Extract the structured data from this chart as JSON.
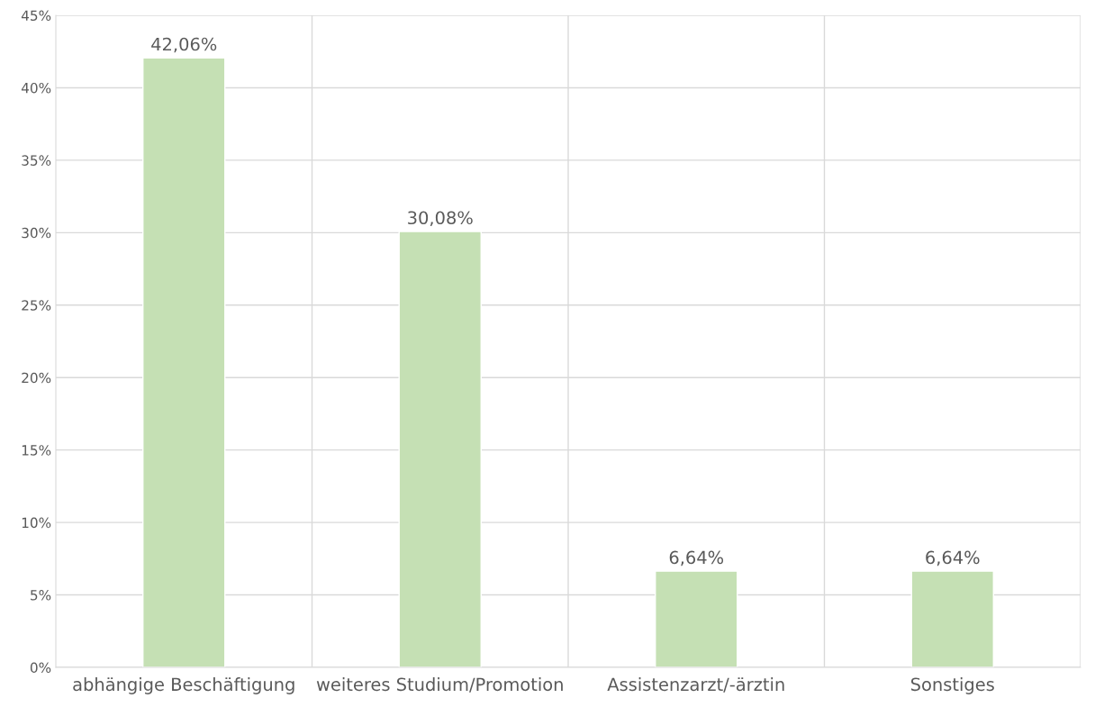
{
  "chart_data": {
    "type": "bar",
    "categories": [
      "abhängige Beschäftigung",
      "weiteres Studium/Promotion",
      "Assistenzarzt/-ärztin",
      "Sonstiges"
    ],
    "values": [
      42.06,
      30.08,
      6.64,
      6.64
    ],
    "value_labels": [
      "42,06%",
      "30,08%",
      "6,64%",
      "6,64%"
    ],
    "color": "#c5e0b4",
    "ylim": [
      0,
      45
    ],
    "yticks": [
      {
        "value": 0,
        "label": "0%"
      },
      {
        "value": 5,
        "label": "5%"
      },
      {
        "value": 10,
        "label": "10%"
      },
      {
        "value": 15,
        "label": "15%"
      },
      {
        "value": 20,
        "label": "20%"
      },
      {
        "value": 25,
        "label": "25%"
      },
      {
        "value": 30,
        "label": "30%"
      },
      {
        "value": 35,
        "label": "35%"
      },
      {
        "value": 40,
        "label": "40%"
      },
      {
        "value": 45,
        "label": "45%"
      }
    ],
    "grid": true
  }
}
